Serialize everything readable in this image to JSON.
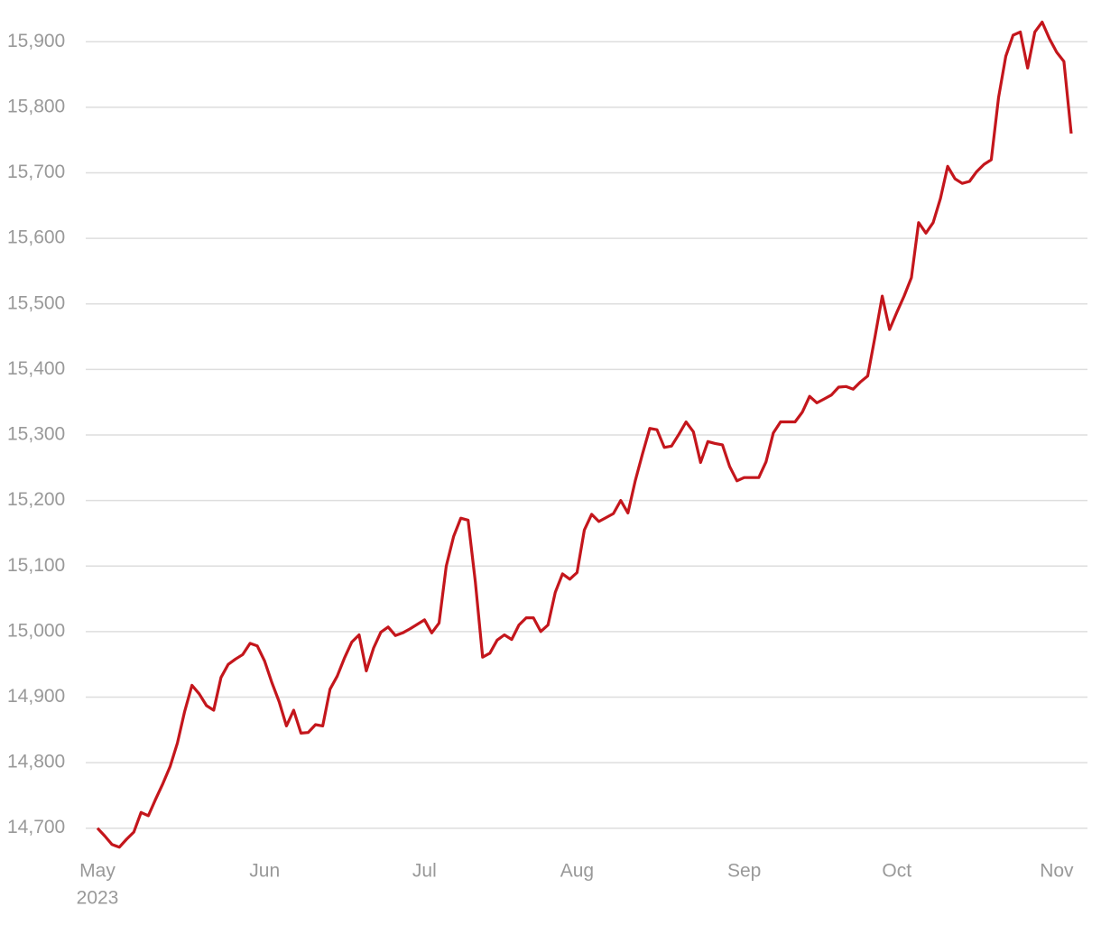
{
  "chart_data": {
    "type": "line",
    "categories": [
      "May",
      null,
      null,
      null,
      null,
      null,
      null,
      null,
      null,
      null,
      null,
      null,
      null,
      null,
      null,
      null,
      null,
      null,
      null,
      null,
      null,
      null,
      null,
      "Jun",
      null,
      null,
      null,
      null,
      null,
      null,
      null,
      null,
      null,
      null,
      null,
      null,
      null,
      null,
      null,
      null,
      null,
      null,
      null,
      null,
      null,
      "Jul",
      null,
      null,
      null,
      null,
      null,
      null,
      null,
      null,
      null,
      null,
      null,
      null,
      null,
      null,
      null,
      null,
      null,
      null,
      null,
      null,
      "Aug",
      null,
      null,
      null,
      null,
      null,
      null,
      null,
      null,
      null,
      null,
      null,
      null,
      null,
      null,
      null,
      null,
      null,
      null,
      null,
      null,
      null,
      null,
      "Sep",
      null,
      null,
      null,
      null,
      null,
      null,
      null,
      null,
      null,
      null,
      null,
      null,
      null,
      null,
      null,
      null,
      null,
      null,
      null,
      null,
      "Oct",
      null,
      null,
      null,
      null,
      null,
      null,
      null,
      null,
      null,
      null,
      null,
      null,
      null,
      null,
      null,
      null,
      null,
      null,
      null,
      null,
      null,
      "Nov",
      null,
      null
    ],
    "year": "2023",
    "series": [
      {
        "color": "#c4161c",
        "values": [
          14700,
          14688,
          14675,
          14671,
          14683,
          14694,
          14724,
          14719,
          14744,
          14768,
          14794,
          14830,
          14878,
          14918,
          14905,
          14887,
          14880,
          14930,
          14950,
          14958,
          14965,
          14982,
          14978,
          14955,
          14922,
          14893,
          14856,
          14880,
          14845,
          14846,
          14858,
          14856,
          14912,
          14932,
          14960,
          14984,
          14995,
          14940,
          14975,
          14999,
          15007,
          14994,
          14998,
          15004,
          15011,
          15018,
          14998,
          15013,
          15100,
          15145,
          15173,
          15170,
          15076,
          14961,
          14967,
          14987,
          14995,
          14988,
          15010,
          15021,
          15021,
          15000,
          15010,
          15060,
          15088,
          15080,
          15090,
          15155,
          15179,
          15168,
          15174,
          15180,
          15200,
          15181,
          15230,
          15271,
          15310,
          15308,
          15281,
          15283,
          15301,
          15320,
          15305,
          15258,
          15290,
          15287,
          15285,
          15252,
          15230,
          15235,
          15235,
          15235,
          15259,
          15303,
          15320,
          15320,
          15320,
          15335,
          15359,
          15349,
          15355,
          15361,
          15373,
          15374,
          15370,
          15381,
          15390,
          15450,
          15512,
          15461,
          15487,
          15512,
          15540,
          15624,
          15608,
          15624,
          15661,
          15710,
          15691,
          15684,
          15687,
          15702,
          15713,
          15720,
          15815,
          15878,
          15910,
          15915,
          15860,
          15915,
          15930,
          15905,
          15884,
          15870,
          15760
        ]
      }
    ],
    "ylim": [
      14650,
      15950
    ],
    "yticks": [
      {
        "value": 14700,
        "label": "14,700"
      },
      {
        "value": 14800,
        "label": "14,800"
      },
      {
        "value": 14900,
        "label": "14,900"
      },
      {
        "value": 15000,
        "label": "15,000"
      },
      {
        "value": 15100,
        "label": "15,100"
      },
      {
        "value": 15200,
        "label": "15,200"
      },
      {
        "value": 15300,
        "label": "15,300"
      },
      {
        "value": 15400,
        "label": "15,400"
      },
      {
        "value": 15500,
        "label": "15,500"
      },
      {
        "value": 15600,
        "label": "15,600"
      },
      {
        "value": 15700,
        "label": "15,700"
      },
      {
        "value": 15800,
        "label": "15,800"
      },
      {
        "value": 15900,
        "label": "15,900"
      }
    ],
    "grid": true
  }
}
